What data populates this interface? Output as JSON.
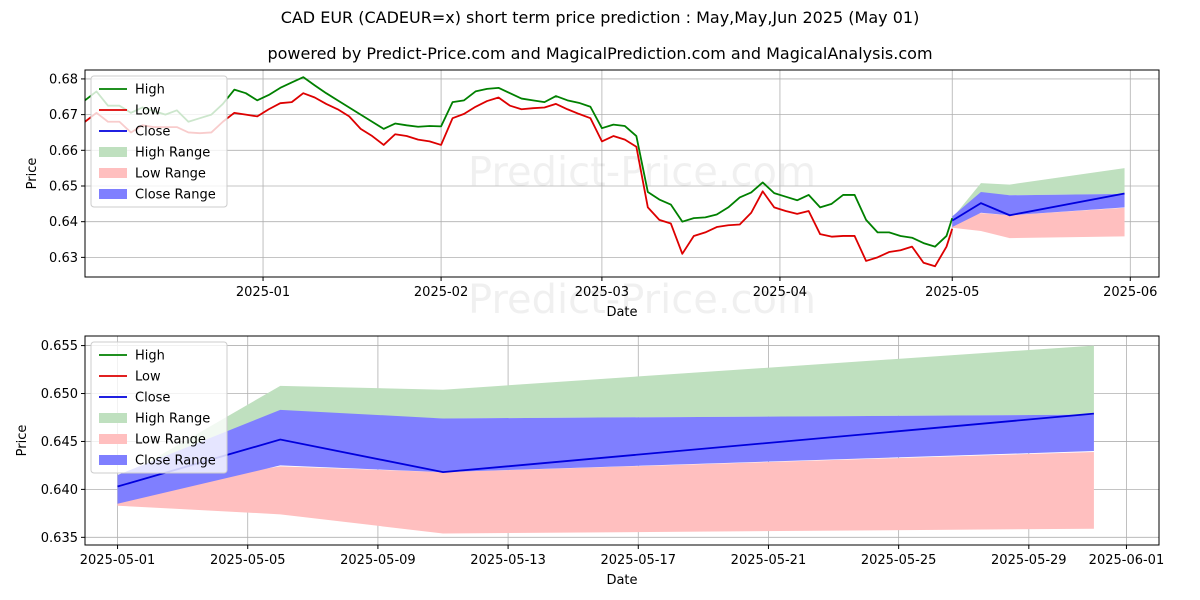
{
  "title": "CAD EUR (CADEUR=x) short term price prediction : May,May,Jun 2025 (May 01)",
  "subtitle": "powered by Predict-Price.com and MagicalPrediction.com and MagicalAnalysis.com",
  "watermark": "Predict-Price.com",
  "colors": {
    "high": "#008000",
    "low": "#dd0000",
    "close": "#0000dd",
    "high_range": "#bfe0bf",
    "low_range": "#ffbfbf",
    "close_range": "#7f7fff"
  },
  "legend": {
    "placement": "upper-left",
    "items": [
      "High",
      "Low",
      "Close",
      "High Range",
      "Low Range",
      "Close Range"
    ]
  },
  "chart_data": [
    {
      "type": "line",
      "xlabel": "Date",
      "ylabel": "Price",
      "xlim": [
        "2024-12-01",
        "2025-06-06"
      ],
      "ylim": [
        0.6245,
        0.6825
      ],
      "xticks": [
        "2025-01-01",
        "2025-02-01",
        "2025-03-01",
        "2025-04-01",
        "2025-05-01",
        "2025-06-01"
      ],
      "xtick_labels": [
        "2025-01",
        "2025-02",
        "2025-03",
        "2025-04",
        "2025-05",
        "2025-06"
      ],
      "yticks": [
        0.63,
        0.64,
        0.65,
        0.66,
        0.67,
        0.68
      ],
      "ytick_labels": [
        "0.63",
        "0.64",
        "0.65",
        "0.66",
        "0.67",
        "0.68"
      ],
      "grid": true,
      "history": {
        "dates": [
          "2024-12-01",
          "2024-12-03",
          "2024-12-05",
          "2024-12-07",
          "2024-12-09",
          "2024-12-11",
          "2024-12-13",
          "2024-12-15",
          "2024-12-17",
          "2024-12-19",
          "2024-12-21",
          "2024-12-23",
          "2024-12-25",
          "2024-12-27",
          "2024-12-29",
          "2024-12-31",
          "2025-01-02",
          "2025-01-04",
          "2025-01-06",
          "2025-01-08",
          "2025-01-10",
          "2025-01-12",
          "2025-01-14",
          "2025-01-16",
          "2025-01-18",
          "2025-01-20",
          "2025-01-22",
          "2025-01-24",
          "2025-01-26",
          "2025-01-28",
          "2025-01-30",
          "2025-02-01",
          "2025-02-03",
          "2025-02-05",
          "2025-02-07",
          "2025-02-09",
          "2025-02-11",
          "2025-02-13",
          "2025-02-15",
          "2025-02-17",
          "2025-02-19",
          "2025-02-21",
          "2025-02-23",
          "2025-02-25",
          "2025-02-27",
          "2025-03-01",
          "2025-03-03",
          "2025-03-05",
          "2025-03-07",
          "2025-03-09",
          "2025-03-11",
          "2025-03-13",
          "2025-03-15",
          "2025-03-17",
          "2025-03-19",
          "2025-03-21",
          "2025-03-23",
          "2025-03-25",
          "2025-03-27",
          "2025-03-29",
          "2025-03-31",
          "2025-04-02",
          "2025-04-04",
          "2025-04-06",
          "2025-04-08",
          "2025-04-10",
          "2025-04-12",
          "2025-04-14",
          "2025-04-16",
          "2025-04-18",
          "2025-04-20",
          "2025-04-22",
          "2025-04-24",
          "2025-04-26",
          "2025-04-28",
          "2025-04-30",
          "2025-05-01"
        ],
        "high": [
          0.674,
          0.6765,
          0.6725,
          0.6725,
          0.6705,
          0.672,
          0.671,
          0.67,
          0.6712,
          0.668,
          0.669,
          0.67,
          0.673,
          0.677,
          0.676,
          0.674,
          0.6755,
          0.6775,
          0.679,
          0.6805,
          0.6782,
          0.676,
          0.674,
          0.672,
          0.67,
          0.668,
          0.666,
          0.6675,
          0.667,
          0.6666,
          0.6668,
          0.6667,
          0.6735,
          0.674,
          0.6765,
          0.6772,
          0.6775,
          0.676,
          0.6745,
          0.674,
          0.6735,
          0.6752,
          0.674,
          0.6733,
          0.6722,
          0.6662,
          0.6672,
          0.6668,
          0.664,
          0.6483,
          0.6462,
          0.6448,
          0.64,
          0.641,
          0.6412,
          0.642,
          0.644,
          0.6468,
          0.6482,
          0.651,
          0.648,
          0.647,
          0.646,
          0.6475,
          0.644,
          0.645,
          0.6475,
          0.6475,
          0.6405,
          0.637,
          0.637,
          0.636,
          0.6355,
          0.634,
          0.633,
          0.636,
          0.641
        ],
        "low": [
          0.668,
          0.6705,
          0.668,
          0.668,
          0.665,
          0.667,
          0.6665,
          0.6665,
          0.6665,
          0.665,
          0.6648,
          0.665,
          0.668,
          0.6705,
          0.67,
          0.6695,
          0.6715,
          0.6732,
          0.6735,
          0.676,
          0.6748,
          0.673,
          0.6715,
          0.6695,
          0.666,
          0.664,
          0.6615,
          0.6645,
          0.664,
          0.663,
          0.6625,
          0.6615,
          0.669,
          0.6702,
          0.6722,
          0.6738,
          0.6748,
          0.6725,
          0.6715,
          0.6718,
          0.672,
          0.673,
          0.6715,
          0.6702,
          0.669,
          0.6625,
          0.664,
          0.663,
          0.661,
          0.644,
          0.6405,
          0.6395,
          0.631,
          0.636,
          0.637,
          0.6385,
          0.639,
          0.6392,
          0.6425,
          0.6485,
          0.644,
          0.643,
          0.6422,
          0.643,
          0.6365,
          0.6358,
          0.636,
          0.636,
          0.629,
          0.63,
          0.6315,
          0.632,
          0.633,
          0.6285,
          0.6275,
          0.633,
          0.638
        ]
      },
      "forecast": {
        "dates": [
          "2025-05-01",
          "2025-05-06",
          "2025-05-11",
          "2025-05-31"
        ],
        "close": [
          0.6403,
          0.6452,
          0.6418,
          0.6479
        ],
        "high_range": {
          "upper": [
            0.641,
            0.6508,
            0.6504,
            0.655
          ],
          "lower": [
            0.64,
            0.648,
            0.6474,
            0.6478
          ]
        },
        "low_range": {
          "upper": [
            0.6398,
            0.6424,
            0.6418,
            0.6439
          ],
          "lower": [
            0.6383,
            0.6374,
            0.6354,
            0.6359
          ]
        },
        "close_range": {
          "upper": [
            0.6415,
            0.6483,
            0.6474,
            0.6478
          ],
          "lower": [
            0.6385,
            0.6425,
            0.6418,
            0.644
          ]
        }
      }
    },
    {
      "type": "line",
      "xlabel": "Date",
      "ylabel": "Price",
      "xlim": [
        "2025-04-30",
        "2025-06-02"
      ],
      "ylim": [
        0.6342,
        0.656
      ],
      "xticks": [
        "2025-05-01",
        "2025-05-05",
        "2025-05-09",
        "2025-05-13",
        "2025-05-17",
        "2025-05-21",
        "2025-05-25",
        "2025-05-29",
        "2025-06-01"
      ],
      "xtick_labels": [
        "2025-05-01",
        "2025-05-05",
        "2025-05-09",
        "2025-05-13",
        "2025-05-17",
        "2025-05-21",
        "2025-05-25",
        "2025-05-29",
        "2025-06-01"
      ],
      "yticks": [
        0.635,
        0.64,
        0.645,
        0.65,
        0.655
      ],
      "ytick_labels": [
        "0.635",
        "0.640",
        "0.645",
        "0.650",
        "0.655"
      ],
      "grid": true,
      "forecast": {
        "dates": [
          "2025-05-01",
          "2025-05-06",
          "2025-05-11",
          "2025-05-31"
        ],
        "close": [
          0.6403,
          0.6452,
          0.6418,
          0.6479
        ],
        "high_range": {
          "upper": [
            0.641,
            0.6508,
            0.6504,
            0.655
          ],
          "lower": [
            0.64,
            0.648,
            0.6474,
            0.6478
          ]
        },
        "low_range": {
          "upper": [
            0.6398,
            0.6424,
            0.6418,
            0.6439
          ],
          "lower": [
            0.6383,
            0.6374,
            0.6354,
            0.6359
          ]
        },
        "close_range": {
          "upper": [
            0.6415,
            0.6483,
            0.6474,
            0.6478
          ],
          "lower": [
            0.6385,
            0.6425,
            0.6418,
            0.644
          ]
        }
      }
    }
  ]
}
